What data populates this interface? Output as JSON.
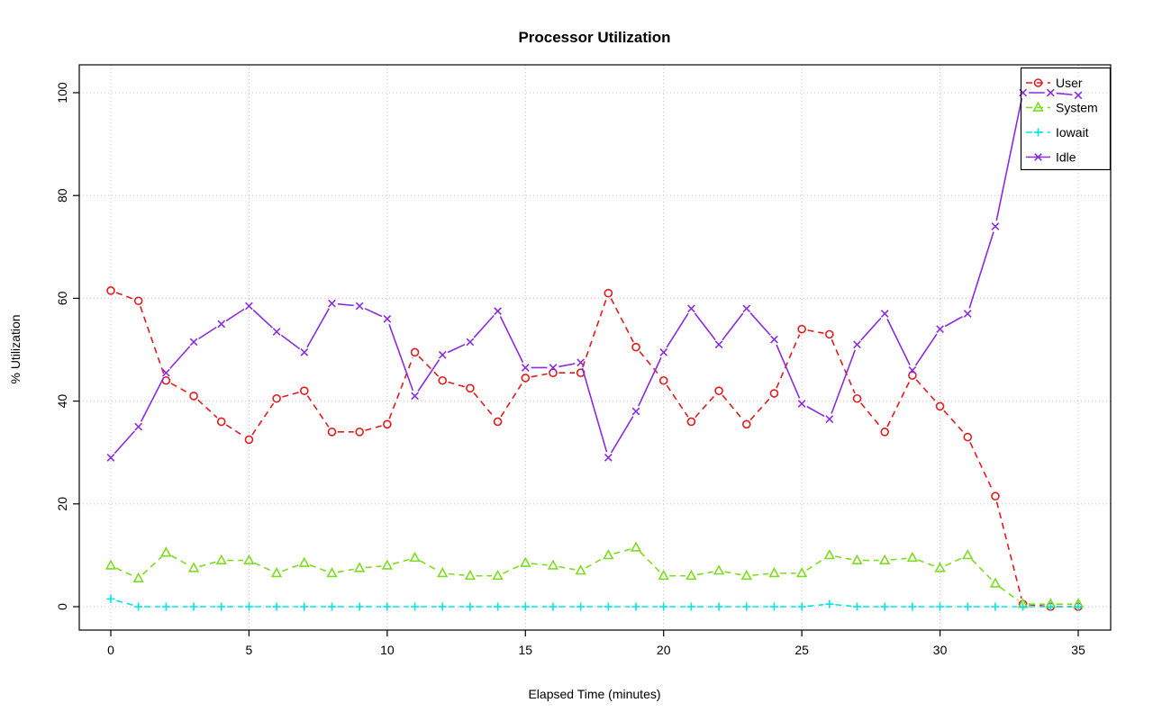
{
  "chart_data": {
    "type": "line",
    "title": "Processor Utilization",
    "xlabel": "Elapsed Time (minutes)",
    "ylabel": "% Utilization",
    "xlim": [
      0,
      35
    ],
    "ylim": [
      0,
      100
    ],
    "x_ticks": [
      0,
      5,
      10,
      15,
      20,
      25,
      30,
      35
    ],
    "y_ticks": [
      0,
      20,
      40,
      60,
      80,
      100
    ],
    "grid": true,
    "grid_color": "#c6c6c6",
    "legend_position": "top-right",
    "x": [
      0,
      1,
      2,
      3,
      4,
      5,
      6,
      7,
      8,
      9,
      10,
      11,
      12,
      13,
      14,
      15,
      16,
      17,
      18,
      19,
      20,
      21,
      22,
      23,
      24,
      25,
      26,
      27,
      28,
      29,
      30,
      31,
      32,
      33,
      34,
      35
    ],
    "series": [
      {
        "name": "User",
        "marker": "circle",
        "dash": true,
        "color": "#e31a1c",
        "values": [
          61.5,
          59.5,
          44,
          41,
          36,
          32.5,
          40.5,
          42,
          34,
          34,
          35.5,
          49.5,
          44,
          42.5,
          36,
          44.5,
          45.5,
          45.5,
          61,
          50.5,
          44,
          36,
          42,
          35.5,
          41.5,
          54,
          53,
          40.5,
          34,
          45,
          39,
          33,
          21.5,
          0.5,
          0,
          0
        ]
      },
      {
        "name": "System",
        "marker": "triangle",
        "dash": true,
        "color": "#7ddc1f",
        "values": [
          8,
          5.5,
          10.5,
          7.5,
          9,
          9,
          6.5,
          8.5,
          6.5,
          7.5,
          8,
          9.5,
          6.5,
          6,
          6,
          8.5,
          8,
          7,
          10,
          11.5,
          6,
          6,
          7,
          6,
          6.5,
          6.5,
          10,
          9,
          9,
          9.5,
          7.5,
          10,
          4.5,
          0.5,
          0.5,
          0.5
        ]
      },
      {
        "name": "Iowait",
        "marker": "plus",
        "dash": true,
        "color": "#00e5e5",
        "values": [
          1.5,
          0,
          0,
          0,
          0,
          0,
          0,
          0,
          0,
          0,
          0,
          0,
          0,
          0,
          0,
          0,
          0,
          0,
          0,
          0,
          0,
          0,
          0,
          0,
          0,
          0,
          0.5,
          0,
          0,
          0,
          0,
          0,
          0,
          0,
          0,
          0
        ]
      },
      {
        "name": "Idle",
        "marker": "x",
        "dash": false,
        "color": "#8a2be2",
        "values": [
          29,
          35,
          45.5,
          51.5,
          55,
          58.5,
          53.5,
          49.5,
          59,
          58.5,
          56,
          41,
          49,
          51.5,
          57.5,
          46.5,
          46.5,
          47.5,
          29,
          38,
          49.5,
          58,
          51,
          58,
          52,
          39.5,
          36.5,
          51,
          57,
          46,
          54,
          57,
          74,
          100,
          100,
          99.5
        ]
      }
    ]
  }
}
